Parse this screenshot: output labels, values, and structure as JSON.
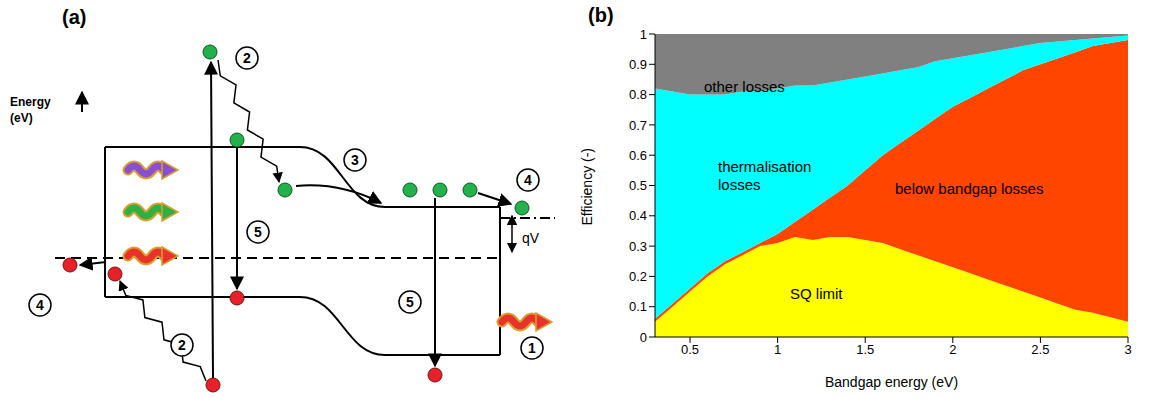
{
  "diagram": {
    "label": "(a)",
    "axis_label": [
      "Energy",
      "(eV)"
    ],
    "voltage_label": "qV",
    "step_labels": [
      "2",
      "3",
      "4",
      "5",
      "5",
      "4",
      "2",
      "1"
    ]
  },
  "chart_label": "(b)",
  "chart_data": {
    "type": "area",
    "stacked": true,
    "x_label": "Bandgap energy (eV)",
    "y_label": "Efficiency (-)",
    "x": [
      0.3,
      0.4,
      0.5,
      0.6,
      0.7,
      0.8,
      0.9,
      1.0,
      1.1,
      1.2,
      1.3,
      1.4,
      1.5,
      1.6,
      1.7,
      1.8,
      1.9,
      2.0,
      2.1,
      2.2,
      2.3,
      2.4,
      2.5,
      2.6,
      2.7,
      2.8,
      2.9,
      3.0
    ],
    "xlim": [
      0.3,
      3
    ],
    "xticks": [
      0.5,
      1,
      1.5,
      2,
      2.5,
      3
    ],
    "ylim": [
      0,
      1
    ],
    "yticks": [
      0,
      0.1,
      0.2,
      0.3,
      0.4,
      0.5,
      0.6,
      0.7,
      0.8,
      0.9,
      1
    ],
    "series": [
      {
        "name": "SQ limit",
        "color": "#ffff00",
        "values": [
          0.05,
          0.1,
          0.15,
          0.2,
          0.24,
          0.27,
          0.3,
          0.31,
          0.33,
          0.32,
          0.33,
          0.33,
          0.32,
          0.31,
          0.29,
          0.27,
          0.25,
          0.23,
          0.21,
          0.19,
          0.17,
          0.15,
          0.13,
          0.11,
          0.09,
          0.08,
          0.065,
          0.05
        ]
      },
      {
        "name": "below bandgap losses",
        "color": "#ff4500",
        "values": [
          0.01,
          0.01,
          0.01,
          0.01,
          0.01,
          0.01,
          0.01,
          0.03,
          0.05,
          0.1,
          0.13,
          0.17,
          0.23,
          0.29,
          0.35,
          0.41,
          0.47,
          0.53,
          0.58,
          0.63,
          0.68,
          0.73,
          0.77,
          0.81,
          0.85,
          0.88,
          0.905,
          0.93
        ]
      },
      {
        "name": "thermalisation losses",
        "color": "#00ffff",
        "values": [
          0.76,
          0.7,
          0.64,
          0.59,
          0.55,
          0.53,
          0.5,
          0.48,
          0.45,
          0.41,
          0.38,
          0.35,
          0.31,
          0.27,
          0.24,
          0.21,
          0.19,
          0.16,
          0.14,
          0.12,
          0.1,
          0.08,
          0.07,
          0.055,
          0.04,
          0.025,
          0.02,
          0.015
        ]
      },
      {
        "name": "other losses",
        "color": "#808080",
        "values": [
          0.18,
          0.19,
          0.2,
          0.2,
          0.2,
          0.19,
          0.19,
          0.18,
          0.17,
          0.17,
          0.16,
          0.15,
          0.14,
          0.13,
          0.12,
          0.11,
          0.09,
          0.08,
          0.07,
          0.06,
          0.05,
          0.04,
          0.03,
          0.025,
          0.02,
          0.015,
          0.01,
          0.005
        ]
      }
    ]
  }
}
